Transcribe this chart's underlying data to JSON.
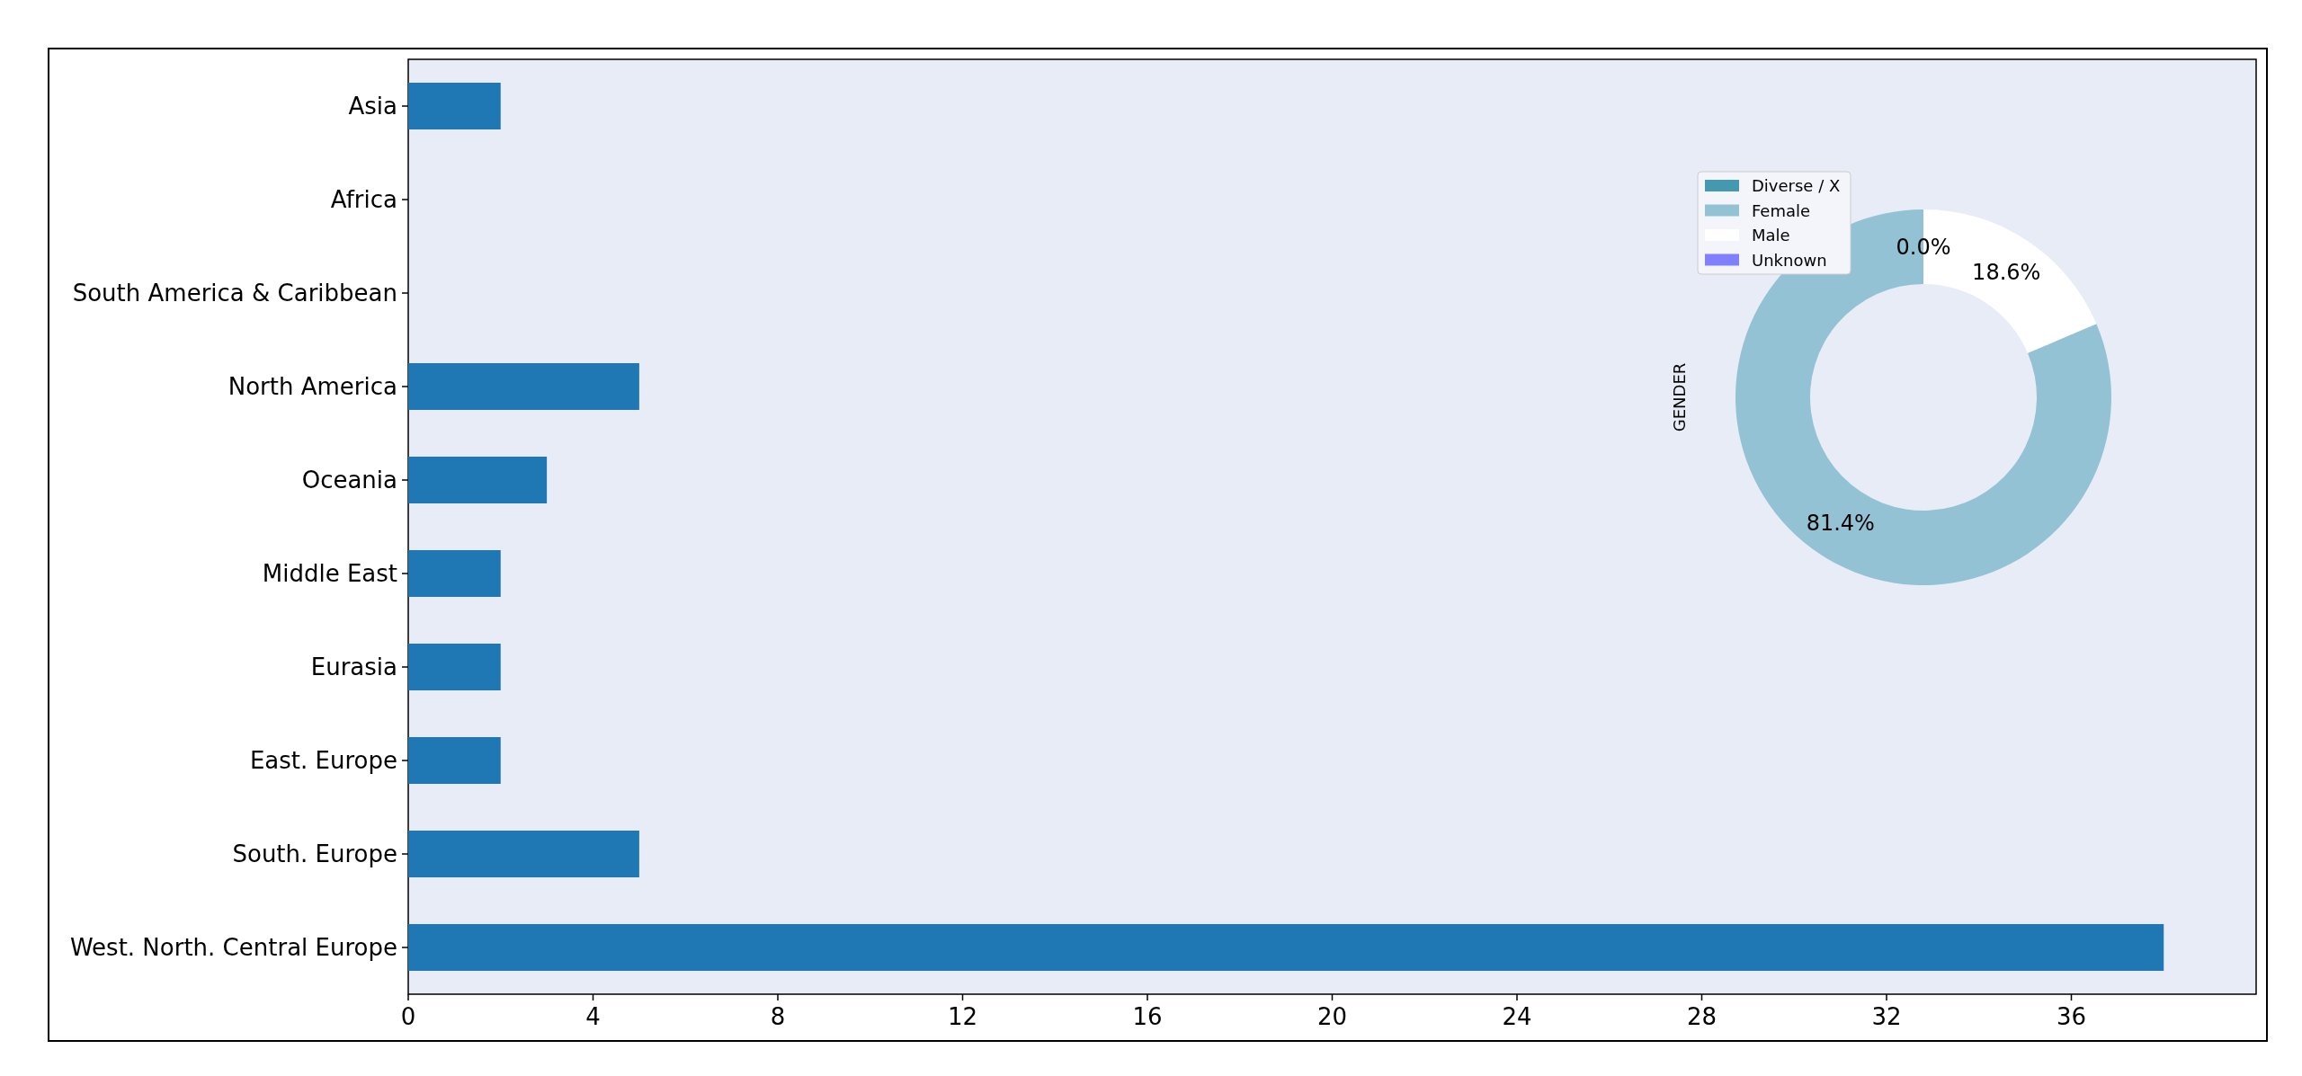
{
  "chart_data": [
    {
      "type": "bar",
      "orientation": "horizontal",
      "categories": [
        "Asia",
        "Africa",
        "South America & Caribbean",
        "North America",
        "Oceania",
        "Middle East",
        "Eurasia",
        "East. Europe",
        "South. Europe",
        "West. North. Central Europe"
      ],
      "values": [
        2,
        0,
        0,
        5,
        3,
        2,
        2,
        2,
        5,
        38
      ],
      "color": "#1f77b4",
      "xlim": [
        0,
        40
      ],
      "xticks": [
        0,
        4,
        8,
        12,
        16,
        20,
        24,
        28,
        32,
        36
      ],
      "grid": false
    },
    {
      "type": "donut",
      "ylabel": "GENDER",
      "categories": [
        "Diverse / X",
        "Female",
        "Male",
        "Unknown"
      ],
      "values": [
        0,
        81.4,
        18.6,
        0
      ],
      "colors": [
        "#4499b0",
        "#92c2d4",
        "#ffffff",
        "#8080ff"
      ],
      "value_labels": [
        "0.0%",
        "81.4%",
        "18.6%",
        null
      ],
      "legend": "top left"
    }
  ]
}
